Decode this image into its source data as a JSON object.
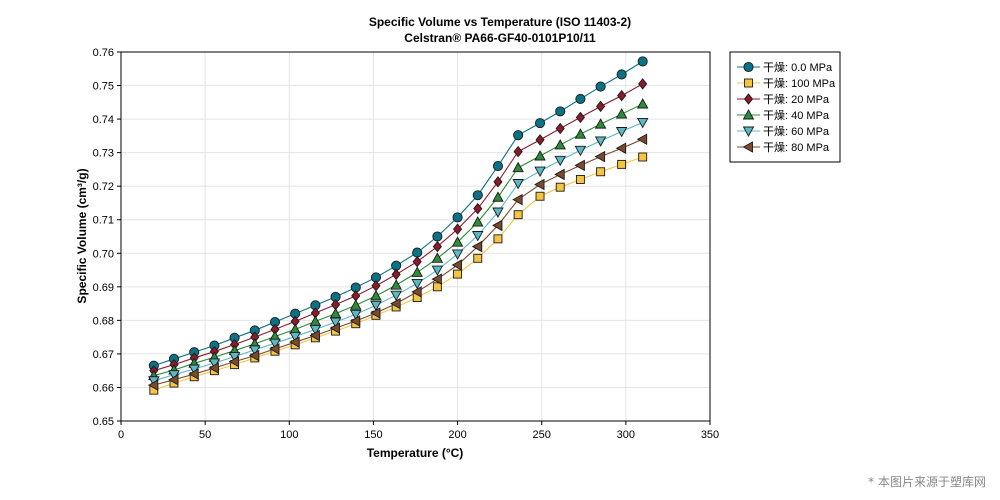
{
  "chart_data": {
    "type": "line",
    "title": "Specific Volume vs Temperature (ISO 11403-2)",
    "subtitle": "Celstran® PA66-GF40-0101P10/11",
    "xlabel": "Temperature (°C)",
    "ylabel": "Specific Volume (cm³/g)",
    "xlim": [
      0,
      350
    ],
    "ylim": [
      0.65,
      0.76
    ],
    "xticks": [
      0,
      50,
      100,
      150,
      200,
      250,
      300,
      350
    ],
    "yticks": [
      0.65,
      0.66,
      0.67,
      0.68,
      0.69,
      0.7,
      0.71,
      0.72,
      0.73,
      0.74,
      0.75,
      0.76
    ],
    "ytick_labels": [
      "0.65",
      "0.66",
      "0.67",
      "0.68",
      "0.69",
      "0.70",
      "0.71",
      "0.72",
      "0.73",
      "0.74",
      "0.75",
      "0.76"
    ],
    "grid": true,
    "legend_position": "top-right-outside",
    "x": [
      19.5,
      31.5,
      43.5,
      55.5,
      67.5,
      79.5,
      91.5,
      103.5,
      115.5,
      127.5,
      139.5,
      151.5,
      163.5,
      176,
      188,
      200,
      212,
      224,
      236,
      249,
      261,
      273,
      285,
      297.5,
      310
    ],
    "series": [
      {
        "name": "干燥: 0.0 MPa",
        "color": "#0b7285",
        "marker": "circle",
        "values": [
          0.6665,
          0.6685,
          0.6705,
          0.6725,
          0.6748,
          0.677,
          0.6795,
          0.682,
          0.6845,
          0.687,
          0.6898,
          0.6928,
          0.6963,
          0.7002,
          0.705,
          0.7107,
          0.7173,
          0.726,
          0.7352,
          0.7388,
          0.7423,
          0.746,
          0.7497,
          0.7533,
          0.7572
        ]
      },
      {
        "name": "干燥: 100 MPa",
        "color": "#f5c542",
        "marker": "square",
        "values": [
          0.6592,
          0.6613,
          0.6632,
          0.665,
          0.6668,
          0.6688,
          0.6708,
          0.6727,
          0.6748,
          0.6768,
          0.679,
          0.6815,
          0.684,
          0.6868,
          0.69,
          0.6938,
          0.6985,
          0.7043,
          0.7115,
          0.717,
          0.7197,
          0.722,
          0.7243,
          0.7265,
          0.7287
        ]
      },
      {
        "name": "干燥: 20 MPa",
        "color": "#8b1a2b",
        "marker": "diamond",
        "values": [
          0.665,
          0.6668,
          0.6688,
          0.6707,
          0.6728,
          0.675,
          0.6773,
          0.6797,
          0.6822,
          0.6847,
          0.6873,
          0.6903,
          0.6937,
          0.6975,
          0.702,
          0.7072,
          0.7133,
          0.7213,
          0.7303,
          0.7338,
          0.7372,
          0.7405,
          0.7438,
          0.747,
          0.7505
        ]
      },
      {
        "name": "干燥: 40 MPa",
        "color": "#2f8b3a",
        "marker": "triangle-up",
        "values": [
          0.6635,
          0.6652,
          0.6672,
          0.669,
          0.671,
          0.673,
          0.6752,
          0.6773,
          0.6797,
          0.682,
          0.6845,
          0.6873,
          0.6905,
          0.6943,
          0.6985,
          0.7033,
          0.7093,
          0.7167,
          0.7255,
          0.729,
          0.7323,
          0.7355,
          0.7385,
          0.7415,
          0.7445
        ]
      },
      {
        "name": "干燥: 60 MPa",
        "color": "#5bb8c4",
        "marker": "triangle-down",
        "values": [
          0.662,
          0.6638,
          0.6655,
          0.6673,
          0.6692,
          0.6712,
          0.6732,
          0.6752,
          0.6773,
          0.6795,
          0.6818,
          0.6845,
          0.6875,
          0.691,
          0.695,
          0.6998,
          0.7053,
          0.7123,
          0.7208,
          0.7245,
          0.7277,
          0.7307,
          0.7335,
          0.7363,
          0.739
        ]
      },
      {
        "name": "干燥: 80 MPa",
        "color": "#7a4a2e",
        "marker": "triangle-left",
        "values": [
          0.6607,
          0.6623,
          0.664,
          0.6658,
          0.6677,
          0.6695,
          0.6715,
          0.6735,
          0.6755,
          0.6777,
          0.6798,
          0.6822,
          0.685,
          0.6885,
          0.6923,
          0.6965,
          0.702,
          0.7083,
          0.716,
          0.7205,
          0.7235,
          0.7262,
          0.7288,
          0.7313,
          0.734
        ]
      }
    ]
  },
  "watermark": "* 本图片来源于塑库网"
}
